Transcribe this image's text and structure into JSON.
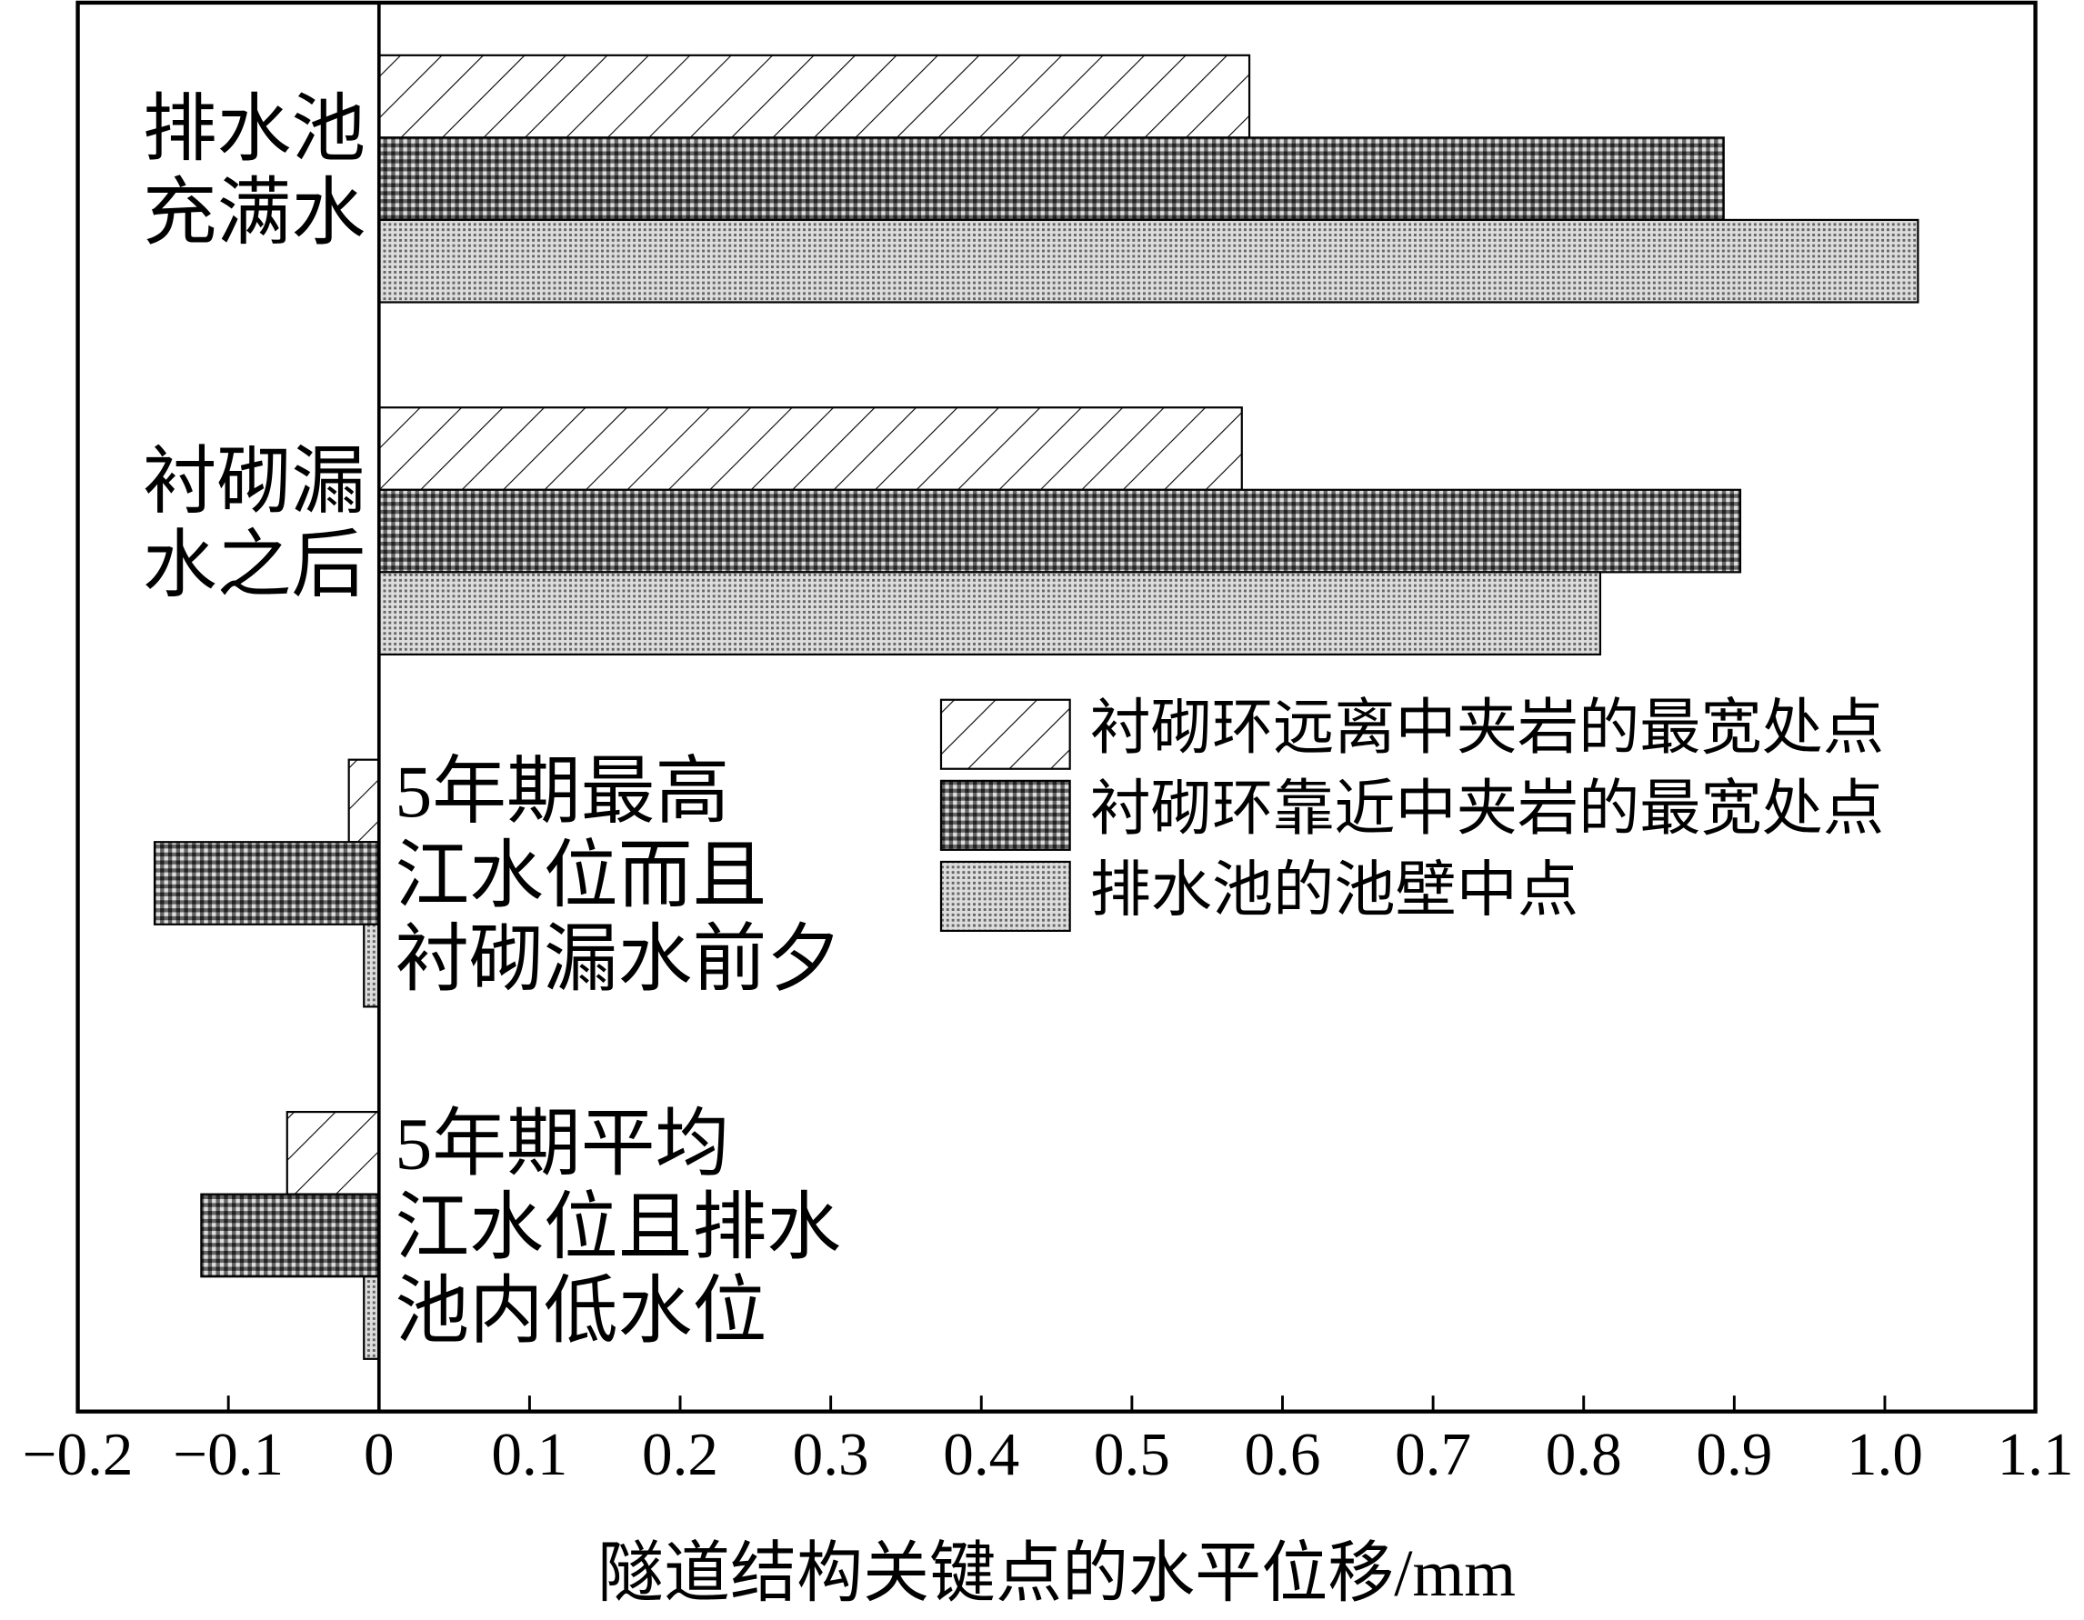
{
  "chart_data": {
    "type": "barh",
    "xlabel": "隧道结构关键点的水平位移/mm",
    "categories": [
      [
        "排水池",
        "充满水"
      ],
      [
        "衬砌漏",
        "水之后"
      ],
      [
        "5年期最高",
        "江水位而且",
        "衬砌漏水前夕"
      ],
      [
        "5年期平均",
        "江水位且排水",
        "池内低水位"
      ]
    ],
    "series": [
      {
        "name": "衬砌环远离中夹岩的最宽处点",
        "color": "#ffffff",
        "pattern": "hatch",
        "values": [
          0.578,
          0.573,
          -0.02,
          -0.061
        ]
      },
      {
        "name": "衬砌环靠近中夹岩的最宽处点",
        "color": "#555555",
        "pattern": "crosshatch",
        "values": [
          0.893,
          0.904,
          -0.149,
          -0.118
        ]
      },
      {
        "name": "排水池的池壁中点",
        "color": "#aaaaaa",
        "pattern": "dots",
        "values": [
          1.022,
          0.811,
          -0.01,
          -0.01
        ]
      }
    ],
    "xlim": [
      -0.2,
      1.1
    ],
    "xticks": [
      {
        "value": -0.2,
        "label": "−0.2"
      },
      {
        "value": -0.1,
        "label": "−0.1"
      },
      0,
      0.1,
      0.2,
      0.3,
      0.4,
      0.5,
      0.6,
      0.7,
      0.8,
      0.9,
      {
        "value": 1.0,
        "label": "1.0"
      },
      1.1
    ],
    "legend": "upper-right"
  }
}
